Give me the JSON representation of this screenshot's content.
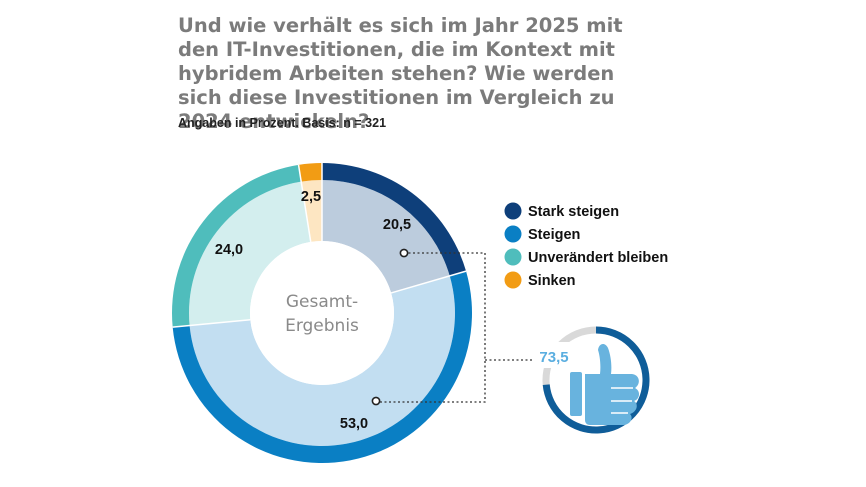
{
  "chart_data": {
    "type": "pie",
    "title": "Und wie verhält es sich im Jahr 2025 mit den IT-Investitionen, die im Kontext mit hybridem Arbeiten stehen? Wie werden sich diese Investitionen im Vergleich zu 2024 entwickeln?",
    "subtitle": "Angaben in Prozent. Basis: n = 321",
    "center_label": [
      "Gesamt-",
      "Ergebnis"
    ],
    "series": [
      {
        "name": "Stark steigen",
        "value": 20.5,
        "label": "20,5",
        "color": "#0e3f7a",
        "light_color": "#bcccdd"
      },
      {
        "name": "Steigen",
        "value": 53.0,
        "label": "53,0",
        "color": "#0a7fc4",
        "light_color": "#c2def1"
      },
      {
        "name": "Unverändert bleiben",
        "value": 24.0,
        "label": "24,0",
        "color": "#4fbdbc",
        "light_color": "#d3eeee"
      },
      {
        "name": "Sinken",
        "value": 2.5,
        "label": "2,5",
        "color": "#f29c14",
        "light_color": "#fde6c2"
      }
    ],
    "summary": {
      "label": "73,5",
      "value": 73.5,
      "text_color": "#5aaee0",
      "ring_color": "#0f5d99",
      "icon": "thumbs-up-icon",
      "icon_color": "#68b3de"
    }
  }
}
